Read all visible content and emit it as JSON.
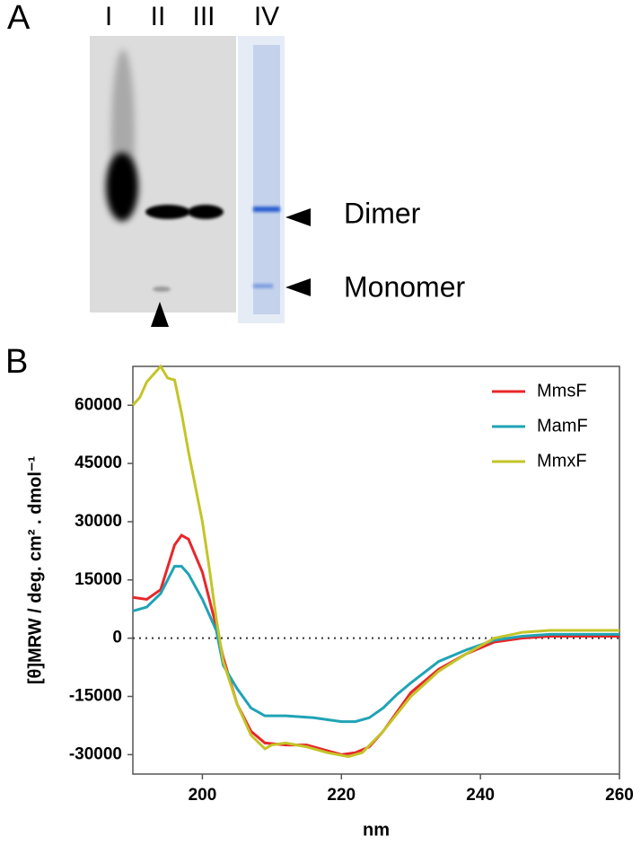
{
  "gel": {
    "panel_label": "A",
    "lanes": [
      "I",
      "II",
      "III",
      "IV"
    ],
    "bands": [
      "Dimer",
      "Monomer"
    ]
  },
  "chart_data": {
    "type": "line",
    "panel_label": "B",
    "xlabel": "nm",
    "ylabel": "[θ]MRW / deg. cm² . dmol⁻¹",
    "xlim": [
      190,
      260
    ],
    "xticks": [
      200,
      220,
      240,
      260
    ],
    "ylim": [
      -35000,
      70000
    ],
    "yticks": [
      -30000,
      -15000,
      0,
      15000,
      30000,
      45000,
      60000
    ],
    "zero_line": true,
    "legend": "upper right",
    "series": [
      {
        "name": "MmsF",
        "color": "#e8262a",
        "x": [
          190,
          192,
          194,
          196,
          197,
          198,
          200,
          202,
          203,
          205,
          207,
          209,
          212,
          215,
          218,
          220,
          222,
          224,
          226,
          228,
          230,
          234,
          238,
          242,
          246,
          250,
          255,
          260
        ],
        "values": [
          10500,
          10000,
          12500,
          24000,
          26500,
          25500,
          17000,
          3000,
          -5000,
          -17000,
          -24000,
          -27000,
          -27500,
          -27500,
          -29000,
          -30000,
          -29500,
          -28000,
          -24000,
          -19000,
          -14000,
          -8000,
          -4000,
          -1000,
          0,
          500,
          500,
          500
        ]
      },
      {
        "name": "MamF",
        "color": "#1fa3b5",
        "x": [
          190,
          192,
          194,
          196,
          197,
          198,
          200,
          202,
          203,
          205,
          207,
          209,
          212,
          216,
          220,
          222,
          224,
          226,
          228,
          230,
          234,
          238,
          242,
          246,
          250,
          255,
          260
        ],
        "values": [
          7000,
          8000,
          11500,
          18500,
          18500,
          16500,
          10000,
          2000,
          -7000,
          -13000,
          -18000,
          -20000,
          -20000,
          -20500,
          -21500,
          -21500,
          -20500,
          -18000,
          -14500,
          -11500,
          -6000,
          -3000,
          -500,
          500,
          1000,
          1000,
          1000
        ]
      },
      {
        "name": "MmxF",
        "color": "#c4c428",
        "x": [
          190,
          191,
          192,
          193,
          194,
          195,
          196,
          197,
          198,
          200,
          201,
          202,
          203,
          205,
          207,
          209,
          210,
          212,
          215,
          218,
          221,
          223,
          226,
          230,
          234,
          238,
          242,
          246,
          250,
          255,
          260
        ],
        "values": [
          60000,
          62000,
          66000,
          68000,
          70000,
          67000,
          66500,
          58000,
          48000,
          30000,
          18000,
          5000,
          -6000,
          -17000,
          -25000,
          -28500,
          -27500,
          -27000,
          -28000,
          -29500,
          -30500,
          -29500,
          -24000,
          -15000,
          -8500,
          -4000,
          0,
          1500,
          2000,
          2000,
          2000
        ]
      }
    ]
  }
}
